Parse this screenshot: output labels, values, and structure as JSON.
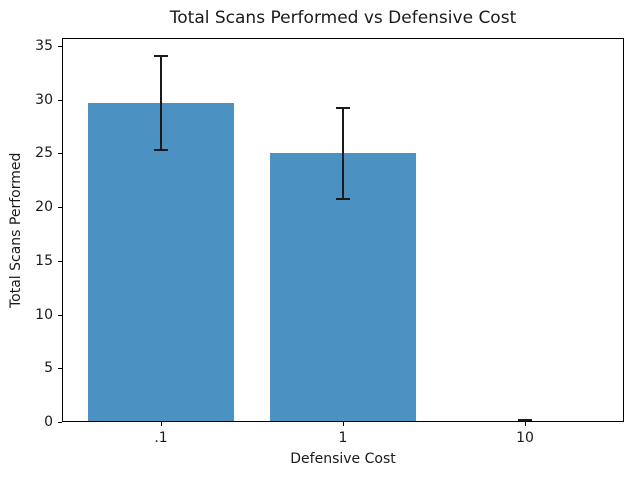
{
  "chart_data": {
    "type": "bar",
    "title": "Total Scans Performed vs Defensive Cost",
    "xlabel": "Defensive Cost",
    "ylabel": "Total Scans Performed",
    "categories": [
      ".1",
      "1",
      "10"
    ],
    "x_positions": [
      0,
      1,
      2
    ],
    "values": [
      29.7,
      25.0,
      0
    ],
    "errors": [
      4.4,
      4.2,
      0.2
    ],
    "bar_width": 0.8,
    "bar_color": "#4b92c3",
    "error_color": "#1a1a1a",
    "xlim": [
      -0.54,
      2.54
    ],
    "ylim": [
      0,
      35.75
    ],
    "yticks": [
      0,
      5,
      10,
      15,
      20,
      25,
      30,
      35
    ],
    "grid": false,
    "legend": null,
    "background_color": "#ffffff"
  }
}
